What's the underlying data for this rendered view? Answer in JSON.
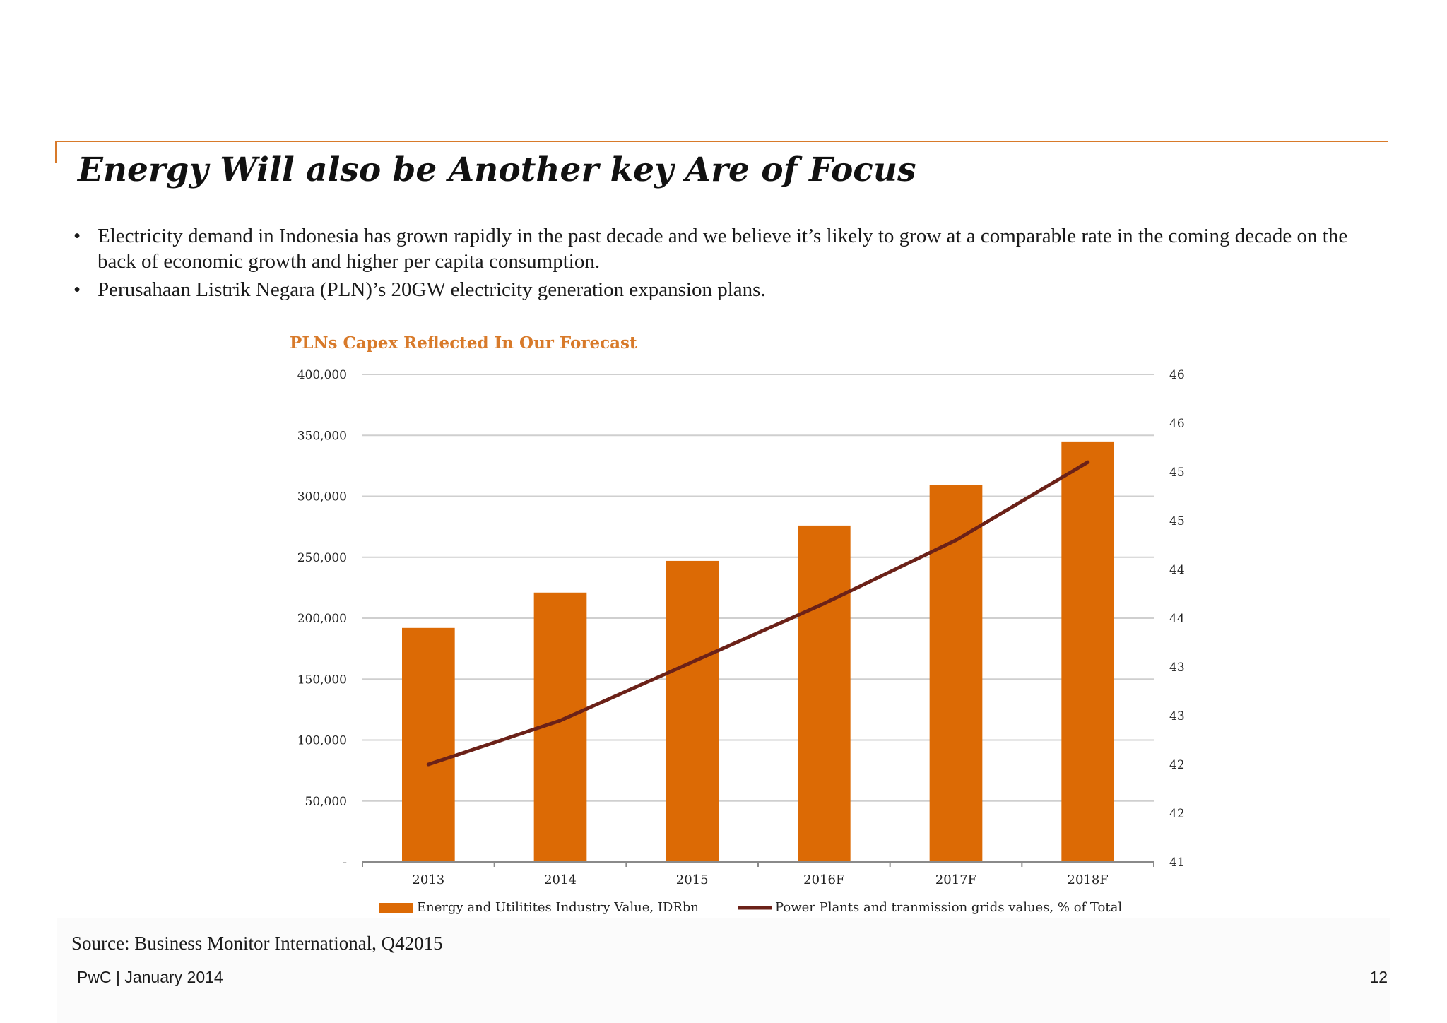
{
  "slide": {
    "title": "Energy Will also be Another key Are of Focus",
    "bullet_symbol": "•",
    "bullets": [
      "Electricity demand in Indonesia has grown rapidly in the past decade and we believe it’s likely to grow at a comparable rate in the coming decade on the back of economic growth and higher per capita consumption.",
      "Perusahaan Listrik Negara (PLN)’s 20GW electricity generation expansion plans."
    ],
    "source": "Source: Business Monitor International, Q42015",
    "footer_left": "PwC  |  January 2014",
    "page_number": "12",
    "accent_color": "#d87a2a"
  },
  "chart_data": {
    "type": "bar",
    "title": "PLNs Capex Reflected In Our Forecast",
    "categories": [
      "2013",
      "2014",
      "2015",
      "2016F",
      "2017F",
      "2018F"
    ],
    "series": [
      {
        "name": "Energy and Utilitites Industry Value, IDRbn",
        "type": "bar",
        "axis": "left",
        "color": "#dc6a05",
        "values": [
          192000,
          221000,
          247000,
          276000,
          309000,
          345000
        ]
      },
      {
        "name": "Power Plants and tranmission grids values, % of Total",
        "type": "line",
        "axis": "right",
        "color": "#6b2118",
        "values": [
          42.0,
          42.45,
          43.05,
          43.65,
          44.3,
          45.1
        ]
      }
    ],
    "y_left": {
      "min": 0,
      "max": 400000,
      "ticks": [
        0,
        50000,
        100000,
        150000,
        200000,
        250000,
        300000,
        350000,
        400000
      ],
      "tick_labels": [
        "-",
        "50,000",
        "100,000",
        "150,000",
        "200,000",
        "250,000",
        "300,000",
        "350,000",
        "400,000"
      ]
    },
    "y_right": {
      "min": 41,
      "max": 46,
      "ticks": [
        41,
        41.5,
        42,
        42.5,
        43,
        43.5,
        44,
        44.5,
        45,
        45.5,
        46
      ],
      "tick_labels": [
        "41",
        "42",
        "42",
        "43",
        "43",
        "44",
        "44",
        "45",
        "45",
        "46",
        "46"
      ]
    },
    "grid": true,
    "legend_position": "bottom"
  }
}
